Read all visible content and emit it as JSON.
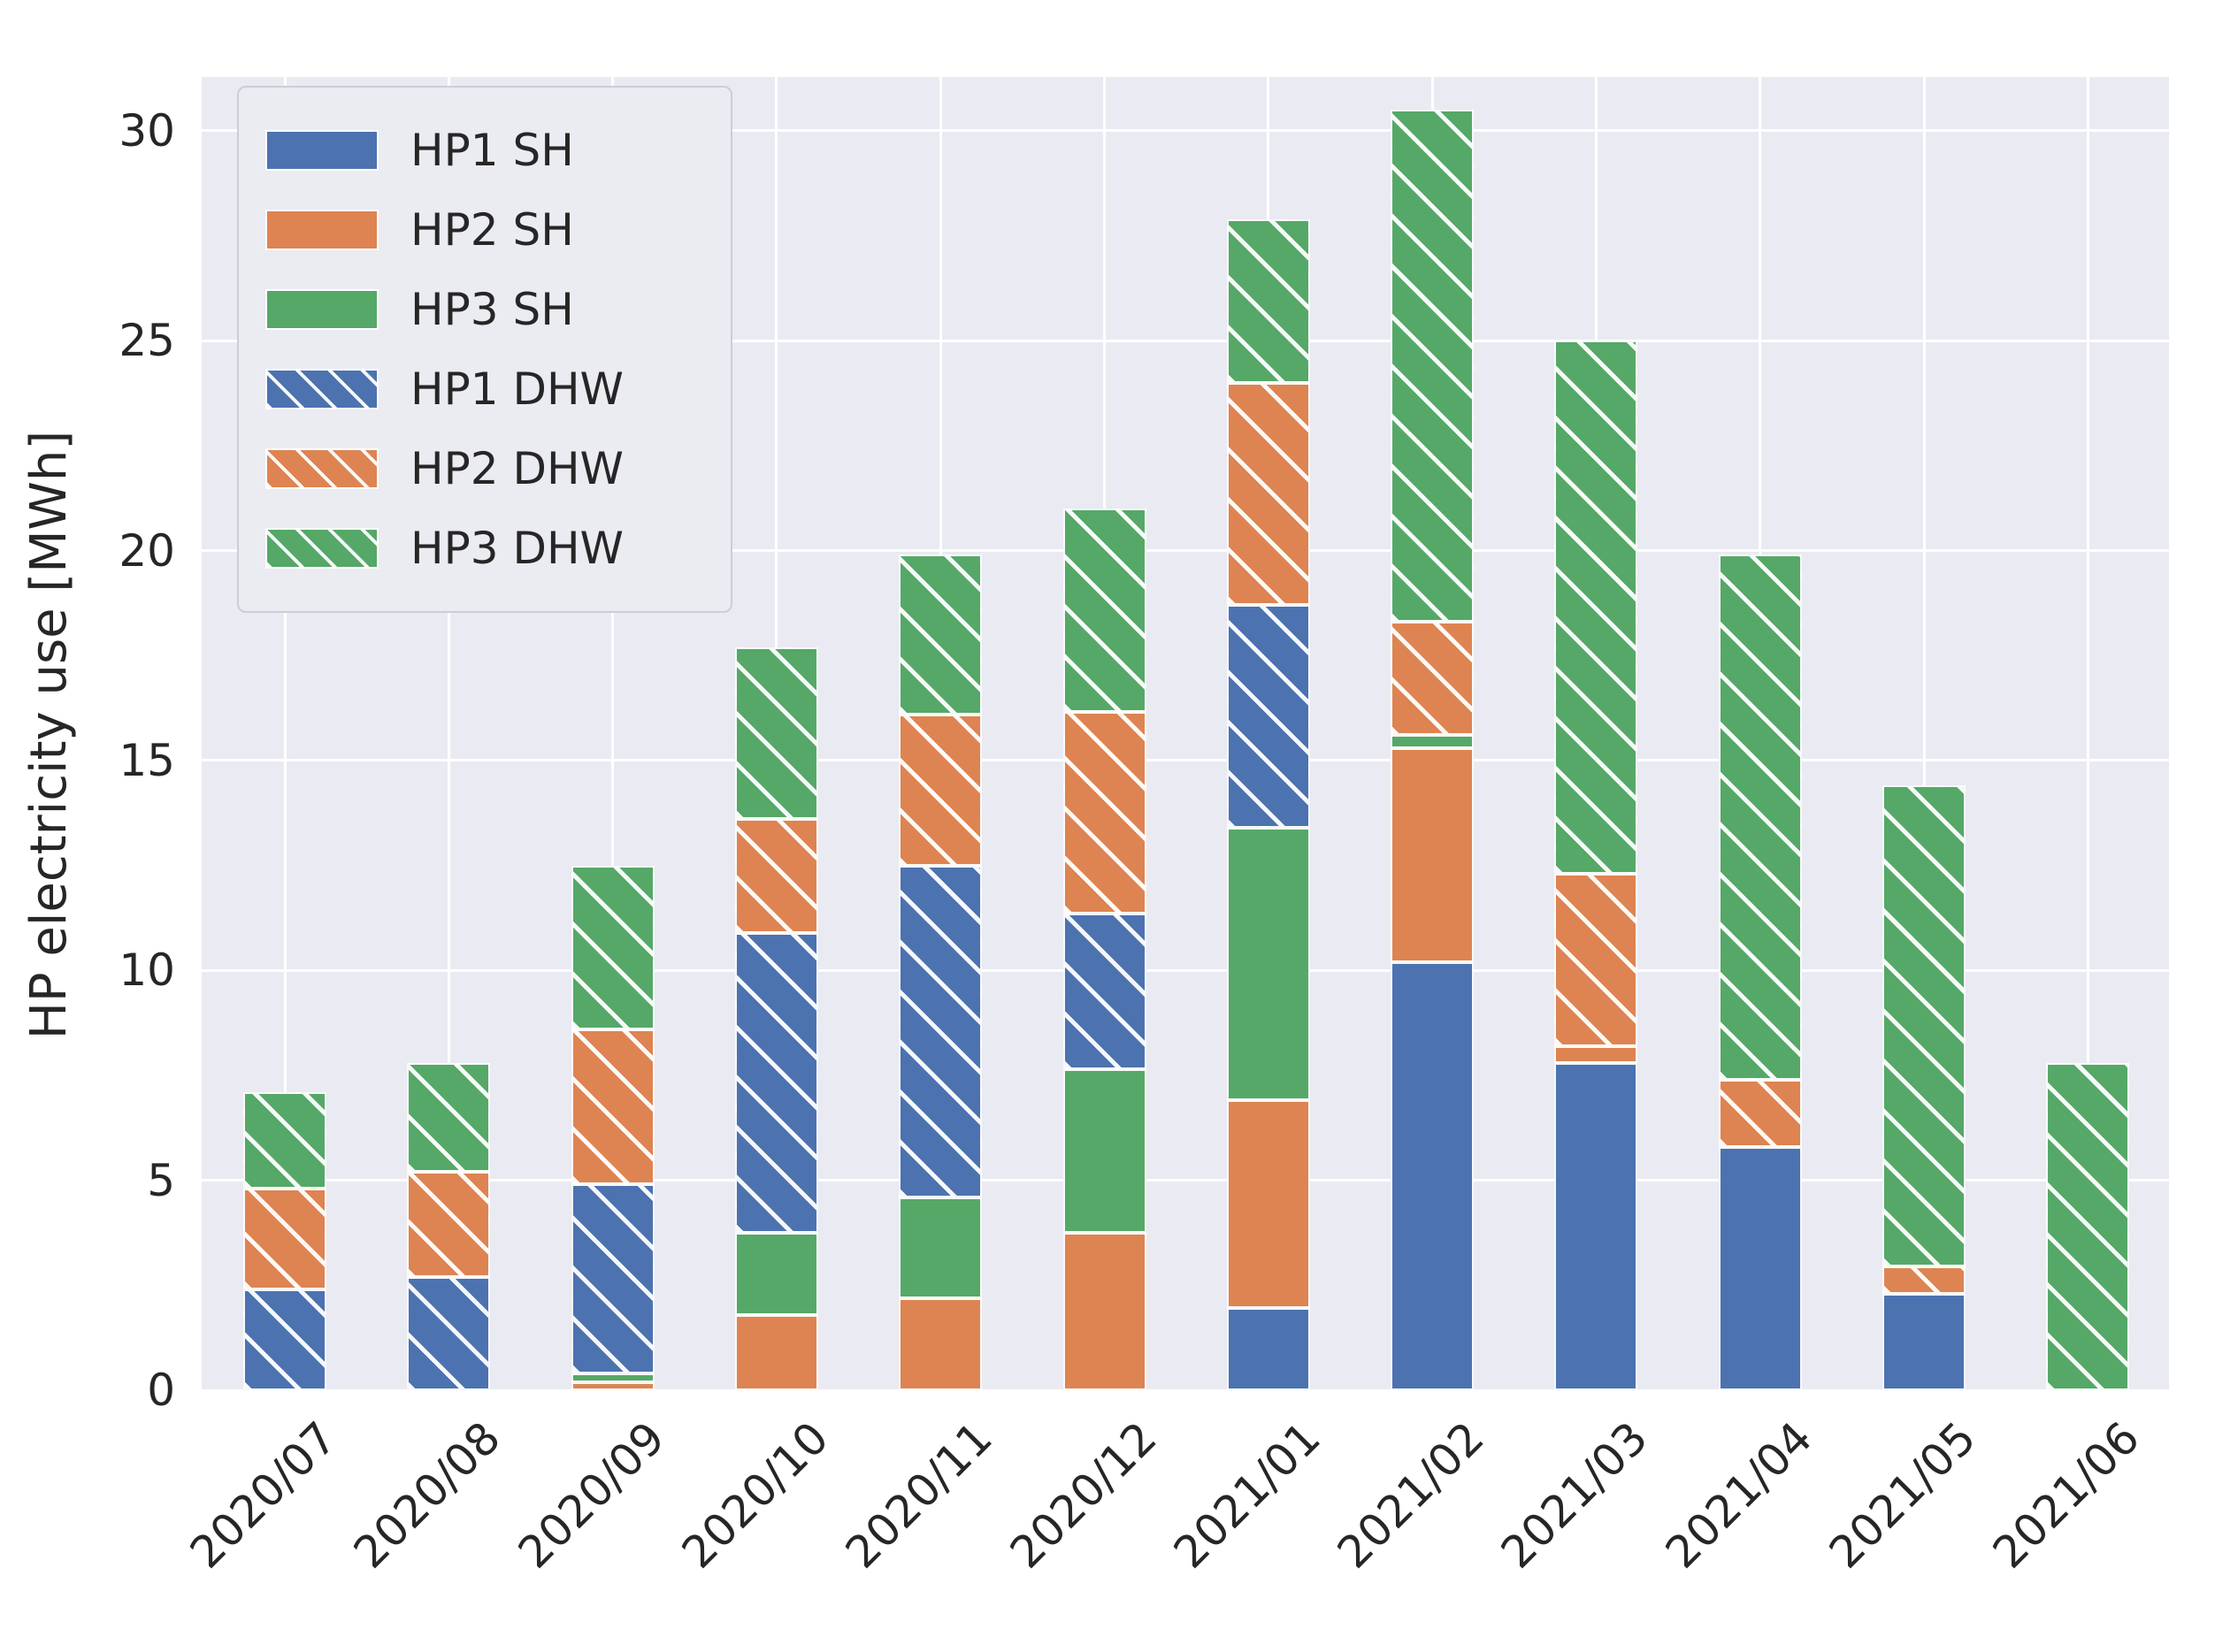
{
  "figure": {
    "background": "#ffffff",
    "plot_background": "#eaeaf2",
    "grid_color": "#ffffff",
    "text_color": "#262626"
  },
  "chart_data": {
    "type": "bar",
    "stacked": true,
    "title": "",
    "xlabel": "",
    "ylabel": "HP electricity use [MWh]",
    "grid": true,
    "legend_position": "upper left",
    "ylim": [
      0,
      31.3
    ],
    "yticks": [
      0,
      5,
      10,
      15,
      20,
      25,
      30
    ],
    "categories": [
      "2020/07",
      "2020/08",
      "2020/09",
      "2020/10",
      "2020/11",
      "2020/12",
      "2021/01",
      "2021/02",
      "2021/03",
      "2021/04",
      "2021/05",
      "2021/06"
    ],
    "series": [
      {
        "name": "HP1 SH",
        "color": "#4c72b0",
        "hatch": false,
        "values": [
          0,
          0,
          0,
          0,
          0,
          0,
          1.95,
          10.2,
          7.8,
          5.8,
          2.3,
          0
        ]
      },
      {
        "name": "HP2 SH",
        "color": "#dd8452",
        "hatch": false,
        "values": [
          0,
          0,
          0.2,
          1.8,
          2.2,
          3.75,
          4.95,
          5.1,
          0.4,
          0,
          0,
          0
        ]
      },
      {
        "name": "HP3 SH",
        "color": "#55a868",
        "hatch": false,
        "values": [
          0,
          0,
          0.2,
          1.95,
          2.4,
          3.9,
          6.5,
          0.3,
          0,
          0,
          0,
          0
        ]
      },
      {
        "name": "HP1 DHW",
        "color": "#4c72b0",
        "hatch": true,
        "values": [
          2.4,
          2.7,
          4.5,
          7.15,
          7.9,
          3.7,
          5.3,
          0,
          0,
          0,
          0,
          0
        ]
      },
      {
        "name": "HP2 DHW",
        "color": "#dd8452",
        "hatch": true,
        "values": [
          2.4,
          2.5,
          3.7,
          2.7,
          3.6,
          4.8,
          5.3,
          2.7,
          4.1,
          1.6,
          0.65,
          0
        ]
      },
      {
        "name": "HP3 DHW",
        "color": "#55a868",
        "hatch": true,
        "values": [
          2.3,
          2.6,
          3.9,
          4.1,
          3.8,
          4.85,
          3.9,
          12.2,
          12.7,
          12.5,
          11.45,
          7.8
        ]
      }
    ],
    "totals": [
      7.1,
      7.8,
      12.5,
      17.7,
      19.9,
      21.0,
      27.9,
      30.5,
      25.0,
      19.9,
      14.4,
      7.8
    ]
  }
}
